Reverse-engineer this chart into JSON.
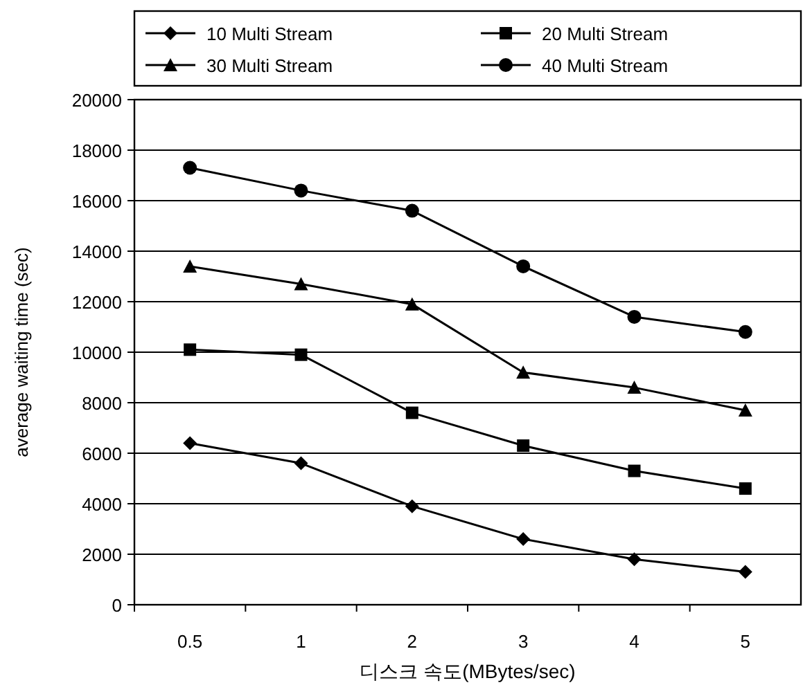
{
  "chart_data": {
    "type": "line",
    "xlabel": "디스크 속도(MBytes/sec)",
    "ylabel": "average waiting time (sec)",
    "categories": [
      "0.5",
      "1",
      "2",
      "3",
      "4",
      "5"
    ],
    "series": [
      {
        "name": "10 Multi Stream",
        "color": "#000000",
        "marker": "diamond",
        "values": [
          6400,
          5600,
          3900,
          2600,
          1800,
          1300
        ]
      },
      {
        "name": "20 Multi Stream",
        "color": "#000000",
        "marker": "square",
        "values": [
          10100,
          9900,
          7600,
          6300,
          5300,
          4600
        ]
      },
      {
        "name": "30 Multi Stream",
        "color": "#000000",
        "marker": "triangle",
        "values": [
          13400,
          12700,
          11900,
          9200,
          8600,
          7700
        ]
      },
      {
        "name": "40 Multi Stream",
        "color": "#000000",
        "marker": "circle",
        "values": [
          17300,
          16400,
          15600,
          13400,
          11400,
          10800
        ]
      }
    ],
    "ylim": [
      0,
      20000
    ],
    "yticks": [
      0,
      2000,
      4000,
      6000,
      8000,
      10000,
      12000,
      14000,
      16000,
      18000,
      20000
    ],
    "grid": "y",
    "legend": "top",
    "line_style": "solid"
  }
}
